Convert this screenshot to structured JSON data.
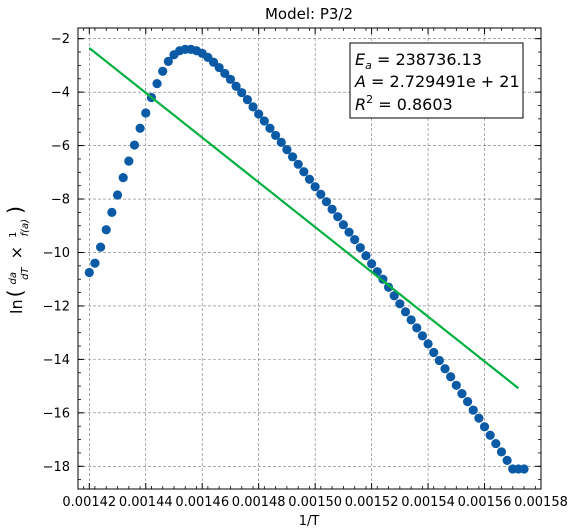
{
  "chart_data": {
    "type": "scatter",
    "title": "Model: P3/2",
    "xlabel": "1/T",
    "ylabel": "ln(da/dT × 1/f(a))",
    "xlim": [
      0.001416,
      0.00158
    ],
    "ylim": [
      -18.85,
      -1.6
    ],
    "xticks": [
      0.00142,
      0.00144,
      0.00146,
      0.00148,
      0.0015,
      0.00152,
      0.00154,
      0.00156,
      0.00158
    ],
    "xtick_labels": [
      "0.00142",
      "0.00144",
      "0.00146",
      "0.00148",
      "0.00150",
      "0.00152",
      "0.00154",
      "0.00156",
      "0.00158"
    ],
    "yticks": [
      -18,
      -16,
      -14,
      -12,
      -10,
      -8,
      -6,
      -4,
      -2
    ],
    "ytick_labels": [
      "−18",
      "−16",
      "−14",
      "−12",
      "−10",
      "−8",
      "−6",
      "−4",
      "−2"
    ],
    "grid": true,
    "series": [
      {
        "kind": "scatter",
        "color": "#0b5aa6",
        "x": [
          0.00142,
          0.001422,
          0.001424,
          0.001426,
          0.001428,
          0.00143,
          0.001432,
          0.001434,
          0.001436,
          0.001438,
          0.00144,
          0.001442,
          0.001444,
          0.001446,
          0.001448,
          0.00145,
          0.001452,
          0.001454,
          0.001456,
          0.001458,
          0.00146,
          0.001462,
          0.001464,
          0.001466,
          0.001468,
          0.00147,
          0.001472,
          0.001474,
          0.001476,
          0.001478,
          0.00148,
          0.001482,
          0.001484,
          0.001486,
          0.001488,
          0.00149,
          0.001492,
          0.001494,
          0.001496,
          0.001498,
          0.0015,
          0.001502,
          0.001504,
          0.001506,
          0.001508,
          0.00151,
          0.001512,
          0.001514,
          0.001516,
          0.001518,
          0.00152,
          0.001522,
          0.001524,
          0.001526,
          0.001528,
          0.00153,
          0.001532,
          0.001534,
          0.001536,
          0.001538,
          0.00154,
          0.001542,
          0.001544,
          0.001546,
          0.001548,
          0.00155,
          0.001552,
          0.001554,
          0.001556,
          0.001558,
          0.00156,
          0.001562,
          0.001564,
          0.001566,
          0.001568,
          0.00157,
          0.001572,
          0.001574
        ],
        "y": [
          -10.75,
          -10.4,
          -9.8,
          -9.15,
          -8.5,
          -7.85,
          -7.2,
          -6.58,
          -5.98,
          -5.35,
          -4.78,
          -4.2,
          -3.68,
          -3.22,
          -2.85,
          -2.6,
          -2.45,
          -2.4,
          -2.4,
          -2.45,
          -2.55,
          -2.7,
          -2.88,
          -3.08,
          -3.3,
          -3.52,
          -3.78,
          -4.02,
          -4.28,
          -4.55,
          -4.82,
          -5.08,
          -5.35,
          -5.62,
          -5.88,
          -6.15,
          -6.42,
          -6.7,
          -6.98,
          -7.26,
          -7.54,
          -7.82,
          -8.1,
          -8.38,
          -8.66,
          -8.96,
          -9.24,
          -9.52,
          -9.82,
          -10.12,
          -10.42,
          -10.72,
          -11.0,
          -11.3,
          -11.62,
          -11.92,
          -12.22,
          -12.52,
          -12.82,
          -13.12,
          -13.42,
          -13.74,
          -14.04,
          -14.35,
          -14.65,
          -14.97,
          -15.28,
          -15.58,
          -15.9,
          -16.2,
          -16.52,
          -16.84,
          -17.15,
          -17.46,
          -17.78,
          -18.1,
          -18.1,
          -18.1
        ]
      },
      {
        "kind": "line",
        "color": "#00b140",
        "x": [
          0.00142,
          0.001572
        ],
        "y": [
          -2.35,
          -15.08
        ]
      }
    ],
    "annotation": {
      "lines": [
        {
          "sym": "E",
          "sub": "a",
          "rest": " = 238736.13"
        },
        {
          "sym": "A",
          "sub": "",
          "rest": " = 2.729491e + 21"
        },
        {
          "sym": "R",
          "sup": "2",
          "rest": " = 0.8603"
        }
      ]
    }
  }
}
